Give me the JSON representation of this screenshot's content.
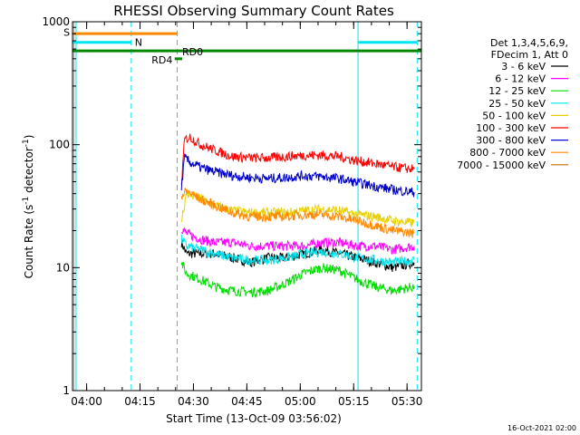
{
  "chart_data": {
    "type": "line",
    "title": "RHESSI Observing Summary Count Rates",
    "xlabel": "Start Time (13-Oct-09 03:56:02)",
    "ylabel": "Count Rate (s",
    "ylabel_sup": "-1",
    "ylabel_rest": " detector",
    "ylabel_end": ")",
    "yscale": "log",
    "ylim": [
      1,
      1000
    ],
    "xlim_minutes": [
      0,
      98
    ],
    "y_ticks": [
      {
        "value": 1,
        "label": "1"
      },
      {
        "value": 10,
        "label": "10"
      },
      {
        "value": 100,
        "label": "100"
      },
      {
        "value": 1000,
        "label": "1000"
      }
    ],
    "x_ticks": [
      {
        "minute": 3.97,
        "label": "04:00"
      },
      {
        "minute": 18.97,
        "label": "04:15"
      },
      {
        "minute": 33.97,
        "label": "04:30"
      },
      {
        "minute": 48.97,
        "label": "04:45"
      },
      {
        "minute": 63.97,
        "label": "05:00"
      },
      {
        "minute": 78.97,
        "label": "05:15"
      },
      {
        "minute": 93.97,
        "label": "05:30"
      }
    ],
    "legend_header": [
      "Det 1,3,4,5,6,9,",
      "FDecim 1, Att 0"
    ],
    "series": [
      {
        "name": "3 - 6 keV",
        "color": "#000000",
        "data": [
          [
            30.6,
            16
          ],
          [
            32,
            13
          ],
          [
            36,
            13
          ],
          [
            40,
            13
          ],
          [
            45,
            12
          ],
          [
            50,
            11
          ],
          [
            55,
            12
          ],
          [
            60,
            12
          ],
          [
            65,
            13
          ],
          [
            70,
            14
          ],
          [
            75,
            13
          ],
          [
            80,
            12
          ],
          [
            85,
            11
          ],
          [
            90,
            10
          ],
          [
            96,
            11
          ]
        ]
      },
      {
        "name": "6 - 12 keV",
        "color": "#ff00ff",
        "data": [
          [
            30.6,
            21
          ],
          [
            32,
            19
          ],
          [
            36,
            17
          ],
          [
            40,
            16
          ],
          [
            45,
            16
          ],
          [
            50,
            15
          ],
          [
            55,
            15
          ],
          [
            60,
            15
          ],
          [
            65,
            15
          ],
          [
            70,
            16
          ],
          [
            75,
            16
          ],
          [
            80,
            15
          ],
          [
            85,
            15
          ],
          [
            90,
            14
          ],
          [
            96,
            15
          ]
        ]
      },
      {
        "name": "12 - 25 keV",
        "color": "#00dd00",
        "data": [
          [
            30.6,
            11
          ],
          [
            32,
            9
          ],
          [
            36,
            8
          ],
          [
            40,
            7
          ],
          [
            45,
            6.5
          ],
          [
            50,
            6.3
          ],
          [
            55,
            6.5
          ],
          [
            60,
            7.5
          ],
          [
            65,
            9
          ],
          [
            70,
            10
          ],
          [
            75,
            9.5
          ],
          [
            80,
            8
          ],
          [
            85,
            7
          ],
          [
            90,
            6.5
          ],
          [
            96,
            7
          ]
        ]
      },
      {
        "name": "25 - 50 keV",
        "color": "#00e5ee",
        "data": [
          [
            30.6,
            17
          ],
          [
            32,
            15
          ],
          [
            36,
            14
          ],
          [
            40,
            13
          ],
          [
            45,
            12
          ],
          [
            50,
            11.5
          ],
          [
            55,
            11.5
          ],
          [
            60,
            12
          ],
          [
            65,
            13
          ],
          [
            70,
            13.5
          ],
          [
            75,
            13
          ],
          [
            80,
            12
          ],
          [
            85,
            11.5
          ],
          [
            90,
            11
          ],
          [
            96,
            11.5
          ]
        ]
      },
      {
        "name": "50 - 100 keV",
        "color": "#e8d000",
        "data": [
          [
            30.6,
            24
          ],
          [
            32,
            40
          ],
          [
            36,
            36
          ],
          [
            40,
            32
          ],
          [
            45,
            29
          ],
          [
            50,
            28
          ],
          [
            55,
            28
          ],
          [
            60,
            28
          ],
          [
            65,
            29
          ],
          [
            70,
            30
          ],
          [
            75,
            29
          ],
          [
            80,
            27
          ],
          [
            85,
            26
          ],
          [
            90,
            24
          ],
          [
            96,
            23
          ]
        ]
      },
      {
        "name": "100 - 300 keV",
        "color": "#ff0000",
        "data": [
          [
            30.6,
            48
          ],
          [
            31.5,
            110
          ],
          [
            33,
            115
          ],
          [
            36,
            100
          ],
          [
            40,
            90
          ],
          [
            45,
            80
          ],
          [
            50,
            78
          ],
          [
            55,
            78
          ],
          [
            60,
            80
          ],
          [
            65,
            82
          ],
          [
            70,
            82
          ],
          [
            75,
            80
          ],
          [
            80,
            74
          ],
          [
            85,
            70
          ],
          [
            90,
            66
          ],
          [
            96,
            63
          ]
        ]
      },
      {
        "name": "300 - 800 keV",
        "color": "#0000cc",
        "data": [
          [
            30.6,
            45
          ],
          [
            31.5,
            78
          ],
          [
            33,
            72
          ],
          [
            36,
            65
          ],
          [
            40,
            60
          ],
          [
            45,
            56
          ],
          [
            50,
            54
          ],
          [
            55,
            53
          ],
          [
            60,
            54
          ],
          [
            65,
            56
          ],
          [
            70,
            55
          ],
          [
            75,
            53
          ],
          [
            80,
            49
          ],
          [
            85,
            46
          ],
          [
            90,
            43
          ],
          [
            96,
            41
          ]
        ]
      },
      {
        "name": "800 - 7000 keV",
        "color": "#ff8800",
        "data": [
          [
            30.6,
            38
          ],
          [
            32,
            42
          ],
          [
            36,
            36
          ],
          [
            40,
            32
          ],
          [
            45,
            28
          ],
          [
            50,
            26
          ],
          [
            55,
            26
          ],
          [
            60,
            26
          ],
          [
            65,
            27
          ],
          [
            70,
            27
          ],
          [
            75,
            26
          ],
          [
            80,
            24
          ],
          [
            85,
            22
          ],
          [
            90,
            20
          ],
          [
            96,
            19
          ]
        ]
      },
      {
        "name": "7000 - 15000 keV",
        "color": "#cc6600",
        "data": []
      }
    ],
    "flags": [
      {
        "label": "S",
        "color": "#ff8800",
        "value": 800,
        "start": 0,
        "end": 29.5,
        "label_minute": -2.5,
        "label_value": 820
      },
      {
        "label": "N",
        "color": "#00e5ee",
        "value": 680,
        "start": 0,
        "end": 16.5,
        "label_minute": 17.5,
        "label_value": 680
      },
      {
        "label": "N",
        "color": "#00e5ee",
        "value": 680,
        "start": 80.2,
        "end": 96.8,
        "label_minute": null,
        "label_value": null
      },
      {
        "label": "RD0",
        "color": "#008800",
        "value": 580,
        "start": 0,
        "end": 98,
        "label_minute": 30.8,
        "label_value": 570
      },
      {
        "label": "RD4",
        "color": "#008800",
        "value": 500,
        "start": 28.7,
        "end": 30.8,
        "label_minute": 22.2,
        "label_value": 490
      }
    ],
    "vlines": [
      {
        "minute": 0.4,
        "color": "#00e5ee",
        "style": "solid"
      },
      {
        "minute": 1.0,
        "color": "#00e5ee",
        "style": "solid"
      },
      {
        "minute": 16.5,
        "color": "#00e5ee",
        "style": "dashed"
      },
      {
        "minute": 29.4,
        "color": "#ff8800",
        "style": "dashed"
      },
      {
        "minute": 80.2,
        "color": "#00e5ee",
        "style": "solid"
      },
      {
        "minute": 96.8,
        "color": "#00e5ee",
        "style": "dashed"
      }
    ],
    "grid": false,
    "legend_position": "right"
  },
  "colors": {
    "background": "#ffffff",
    "axis": "#000000"
  },
  "timestamp": "16-Oct-2021 02:00"
}
